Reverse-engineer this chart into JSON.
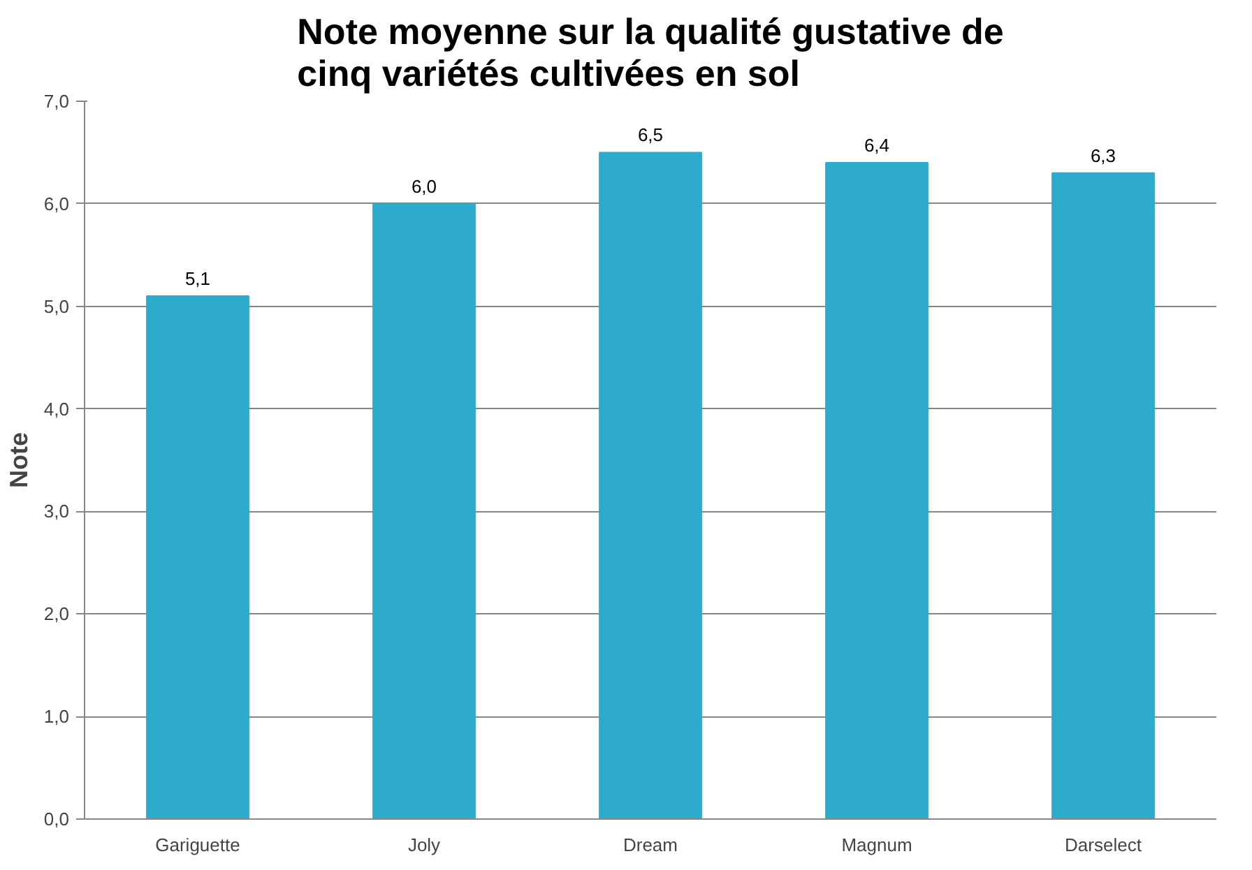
{
  "chart_data": {
    "type": "bar",
    "title": "Note moyenne sur la qualité gustative de cinq variétés cultivées en sol",
    "ylabel": "Note",
    "categories": [
      "Gariguette",
      "Joly",
      "Dream",
      "Magnum",
      "Darselect"
    ],
    "values": [
      5.1,
      6.0,
      6.5,
      6.4,
      6.3
    ],
    "value_labels": [
      "5,1",
      "6,0",
      "6,5",
      "6,4",
      "6,3"
    ],
    "color": "#2eaacb",
    "ylim": [
      0,
      7
    ],
    "yticks": [
      {
        "value": 0,
        "label": "0,0"
      },
      {
        "value": 1,
        "label": "1,0"
      },
      {
        "value": 2,
        "label": "2,0"
      },
      {
        "value": 3,
        "label": "3,0"
      },
      {
        "value": 4,
        "label": "4,0"
      },
      {
        "value": 5,
        "label": "5,0"
      },
      {
        "value": 6,
        "label": "6,0"
      },
      {
        "value": 7,
        "label": "7,0"
      }
    ],
    "grid": "y"
  }
}
